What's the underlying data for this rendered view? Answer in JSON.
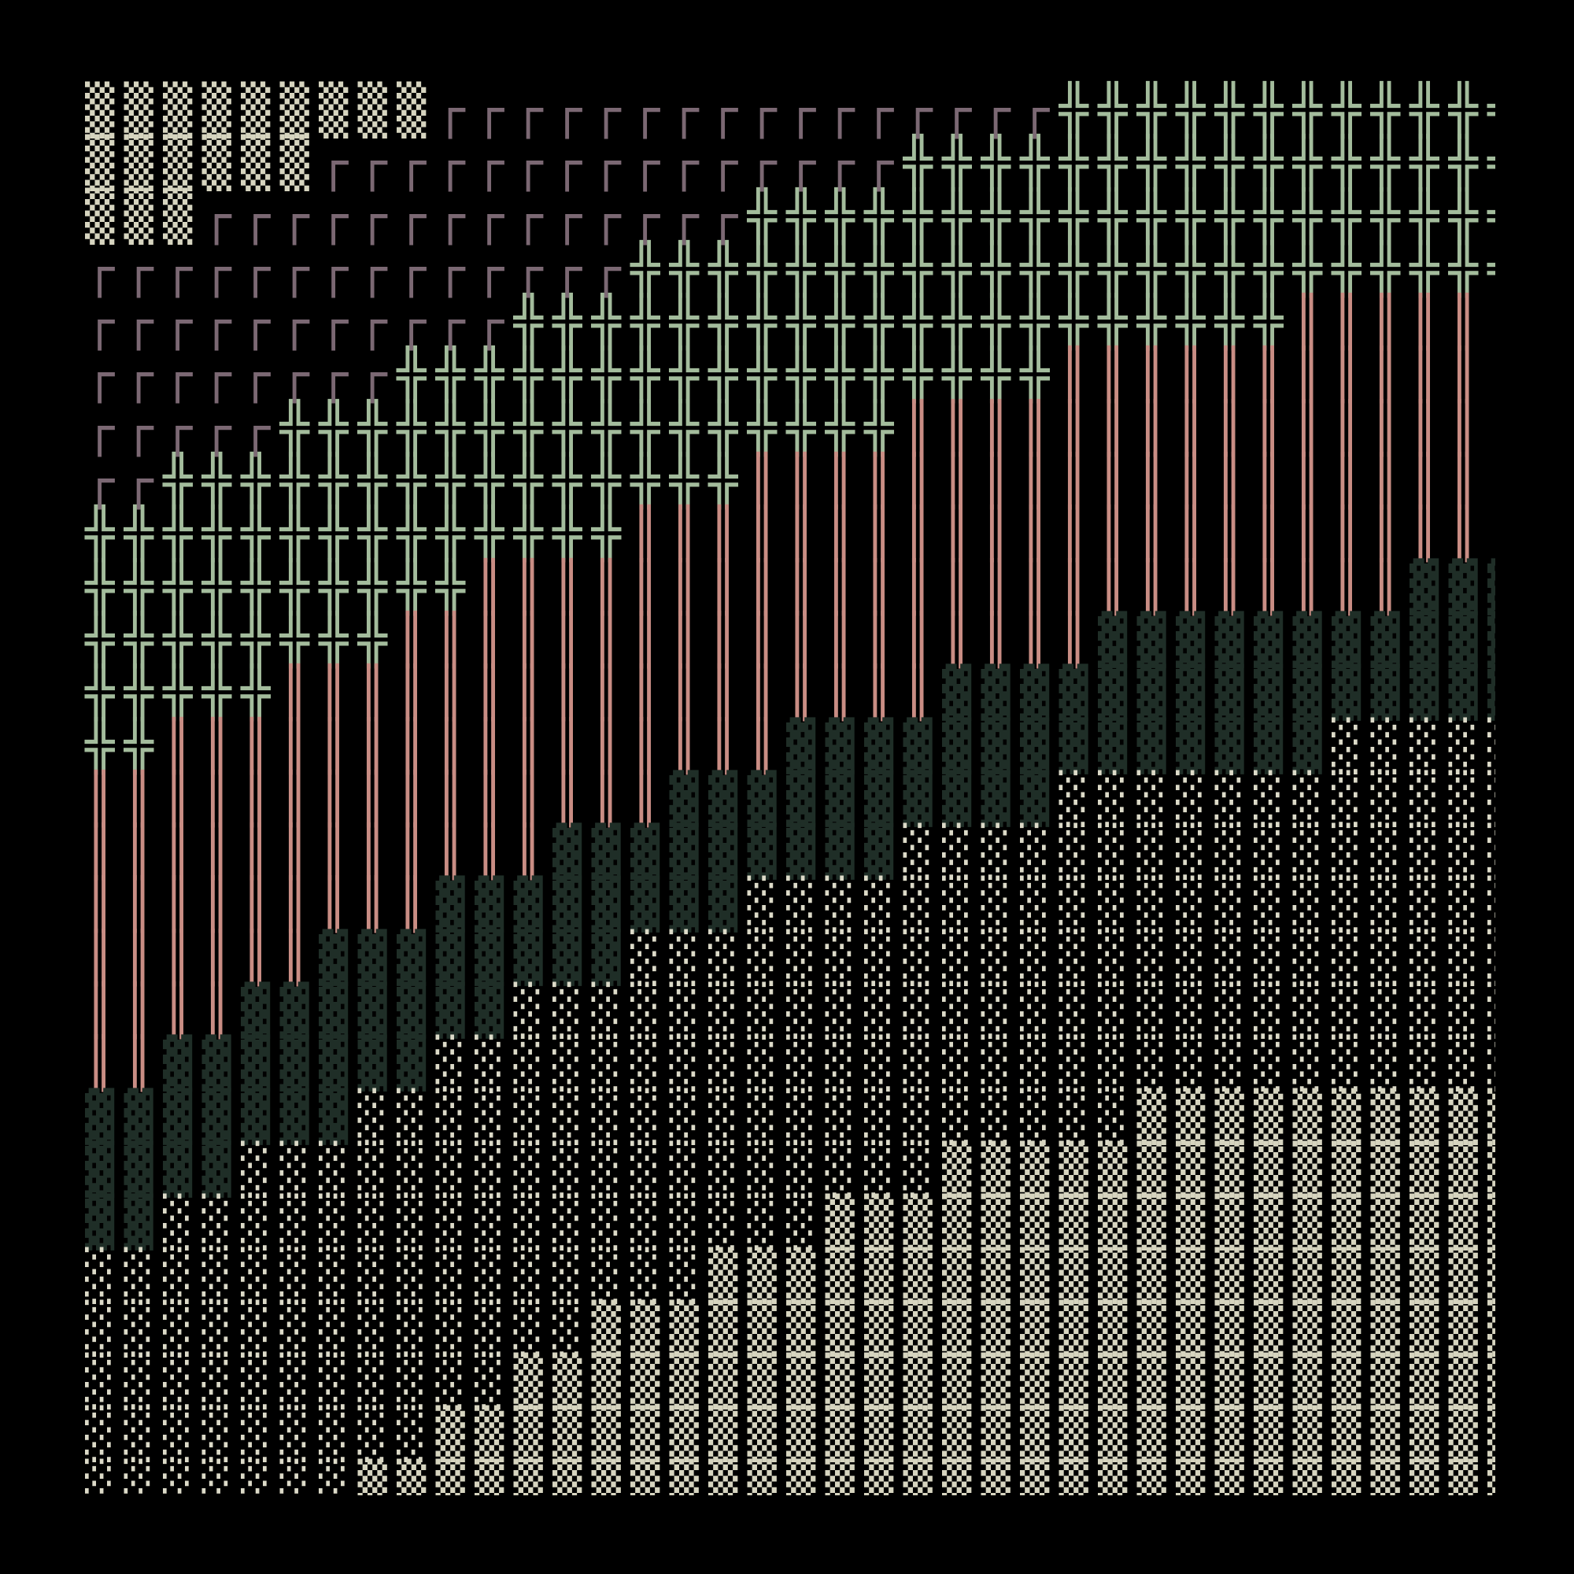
{
  "glyphs": {
    "▒": {
      "name": "medium-shade",
      "color": "#d6d4bf"
    },
    "┌": {
      "name": "box-corner",
      "color": "#7b6873"
    },
    "╬": {
      "name": "double-cross",
      "color": "#a3bc9c"
    },
    "║": {
      "name": "double-vertical",
      "color": "#c98d84"
    },
    "▓": {
      "name": "dark-shade",
      "color": "#1f2e27"
    },
    "░": {
      "name": "light-shade",
      "color": "#dcdac8"
    }
  },
  "rows": [
    [
      [
        "▒",
        9
      ],
      [
        "┌",
        16
      ],
      [
        "╬",
        12
      ]
    ],
    [
      [
        "▒",
        6
      ],
      [
        "┌",
        15
      ],
      [
        "╬",
        16
      ]
    ],
    [
      [
        "▒",
        3
      ],
      [
        "┌",
        14
      ],
      [
        "╬",
        20
      ]
    ],
    [
      [
        "┌",
        14
      ],
      [
        "╬",
        23
      ]
    ],
    [
      [
        "┌",
        11
      ],
      [
        "╬",
        20
      ],
      [
        "║",
        6
      ]
    ],
    [
      [
        "┌",
        8
      ],
      [
        "╬",
        17
      ],
      [
        "║",
        12
      ]
    ],
    [
      [
        "┌",
        5
      ],
      [
        "╬",
        16
      ],
      [
        "║",
        16
      ]
    ],
    [
      [
        "┌",
        2
      ],
      [
        "╬",
        15
      ],
      [
        "║",
        20
      ]
    ],
    [
      [
        "╬",
        14
      ],
      [
        "║",
        23
      ]
    ],
    [
      [
        "╬",
        10
      ],
      [
        "║",
        24
      ],
      [
        "▓",
        3
      ]
    ],
    [
      [
        "╬",
        8
      ],
      [
        "║",
        18
      ],
      [
        "▓",
        11
      ]
    ],
    [
      [
        "╬",
        5
      ],
      [
        "║",
        17
      ],
      [
        "▓",
        15
      ]
    ],
    [
      [
        "╬",
        2
      ],
      [
        "║",
        16
      ],
      [
        "▓",
        14
      ],
      [
        "░",
        5
      ]
    ],
    [
      [
        "║",
        15
      ],
      [
        "▓",
        10
      ],
      [
        "░",
        12
      ]
    ],
    [
      [
        "║",
        12
      ],
      [
        "▓",
        9
      ],
      [
        "░",
        16
      ]
    ],
    [
      [
        "║",
        9
      ],
      [
        "▓",
        8
      ],
      [
        "░",
        20
      ]
    ],
    [
      [
        "║",
        6
      ],
      [
        "▓",
        8
      ],
      [
        "░",
        23
      ]
    ],
    [
      [
        "║",
        4
      ],
      [
        "▓",
        7
      ],
      [
        "░",
        26
      ]
    ],
    [
      [
        "║",
        2
      ],
      [
        "▓",
        7
      ],
      [
        "░",
        28
      ]
    ],
    [
      [
        "▓",
        7
      ],
      [
        "░",
        20
      ],
      [
        "▒",
        10
      ]
    ],
    [
      [
        "▓",
        4
      ],
      [
        "░",
        18
      ],
      [
        "▒",
        15
      ]
    ],
    [
      [
        "▓",
        2
      ],
      [
        "░",
        17
      ],
      [
        "▒",
        18
      ]
    ],
    [
      [
        "░",
        16
      ],
      [
        "▒",
        21
      ]
    ],
    [
      [
        "░",
        13
      ],
      [
        "▒",
        24
      ]
    ],
    [
      [
        "░",
        11
      ],
      [
        "▒",
        26
      ]
    ],
    [
      [
        "░",
        9
      ],
      [
        "▒",
        28
      ]
    ],
    [
      [
        "░",
        7
      ],
      [
        "▒",
        30
      ]
    ]
  ]
}
